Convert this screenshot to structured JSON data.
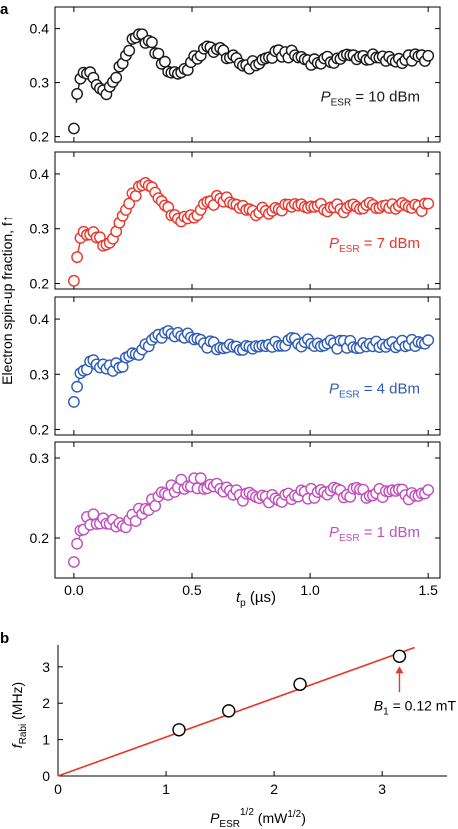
{
  "chart_data": [
    {
      "type": "scatter",
      "panel_label": "a",
      "ylabel": "Electron spin-up fraction, f↑",
      "xlabel": "t",
      "xlabel_sub": "p",
      "xlabel_unit": " (µs)",
      "xlim": [
        -0.08,
        1.55
      ],
      "x_ticks": [
        "0.0",
        "0.5",
        "1.0",
        "1.5"
      ],
      "panels": [
        {
          "color": "#1a1a1a",
          "annotation": {
            "main": "P",
            "sub": "ESR",
            "rest": " = 10 dBm"
          },
          "ylim": [
            0.19,
            0.44
          ],
          "y_ticks": [
            0.2,
            0.3,
            0.4
          ],
          "params": {
            "t0": 0.0,
            "tau": 0.04,
            "amp": 0.16,
            "base": 0.345,
            "decay": 2.5,
            "freq": 3.3,
            "phi": 0.3,
            "noise": 0.008,
            "base0": 0.22,
            "first": 0.215
          }
        },
        {
          "color": "#e8372c",
          "annotation": {
            "main": "P",
            "sub": "ESR",
            "rest": " = 7 dBm"
          },
          "ylim": [
            0.19,
            0.44
          ],
          "y_ticks": [
            0.2,
            0.3,
            0.4
          ],
          "params": {
            "t0": 0.0,
            "tau": 0.05,
            "amp": 0.17,
            "base": 0.34,
            "decay": 2.8,
            "freq": 3.0,
            "phi": 0.5,
            "noise": 0.008,
            "base0": 0.2,
            "first": 0.205
          }
        },
        {
          "color": "#2f5db5",
          "annotation": {
            "main": "P",
            "sub": "ESR",
            "rest": " = 4 dBm"
          },
          "ylim": [
            0.19,
            0.44
          ],
          "y_ticks": [
            0.2,
            0.3,
            0.4
          ],
          "params": {
            "t0": 0.0,
            "tau": 0.06,
            "amp": 0.14,
            "base": 0.355,
            "decay": 3.4,
            "freq": 2.0,
            "phi": 0.8,
            "noise": 0.008,
            "base0": 0.25,
            "first": 0.25
          }
        },
        {
          "color": "#c04fbd",
          "annotation": {
            "main": "P",
            "sub": "ESR",
            "rest": " = 1 dBm"
          },
          "ylim": [
            0.15,
            0.32
          ],
          "y_ticks": [
            0.2,
            0.3
          ],
          "params": {
            "t0": 0.0,
            "tau": 0.07,
            "amp": 0.12,
            "base": 0.255,
            "decay": 2.8,
            "freq": 1.6,
            "phi": 0.9,
            "noise": 0.007,
            "base0": 0.17,
            "first": 0.17
          }
        }
      ]
    },
    {
      "type": "scatter",
      "panel_label": "b",
      "ylabel": "f",
      "ylabel_sub": "Rabi",
      "ylabel_unit": " (MHz)",
      "xlabel": "P",
      "xlabel_sub": "ESR",
      "xlabel_sup": "1/2",
      "xlabel_unit": " (mW",
      "xlabel_unit_sup": "1/2",
      "xlabel_close": ")",
      "xlim": [
        0,
        3.6
      ],
      "ylim": [
        0,
        3.6
      ],
      "x_ticks": [
        0,
        1,
        2,
        3
      ],
      "y_ticks": [
        0,
        1,
        2,
        3
      ],
      "x": [
        1.12,
        1.58,
        2.24,
        3.16
      ],
      "y": [
        1.27,
        1.79,
        2.52,
        3.29
      ],
      "fit_slope": 1.07,
      "fit_color": "#e8372c",
      "annotation": {
        "main": "B",
        "sub": "1",
        "rest": " = 0.12 mT"
      },
      "arrow_color": "#e8372c"
    }
  ]
}
